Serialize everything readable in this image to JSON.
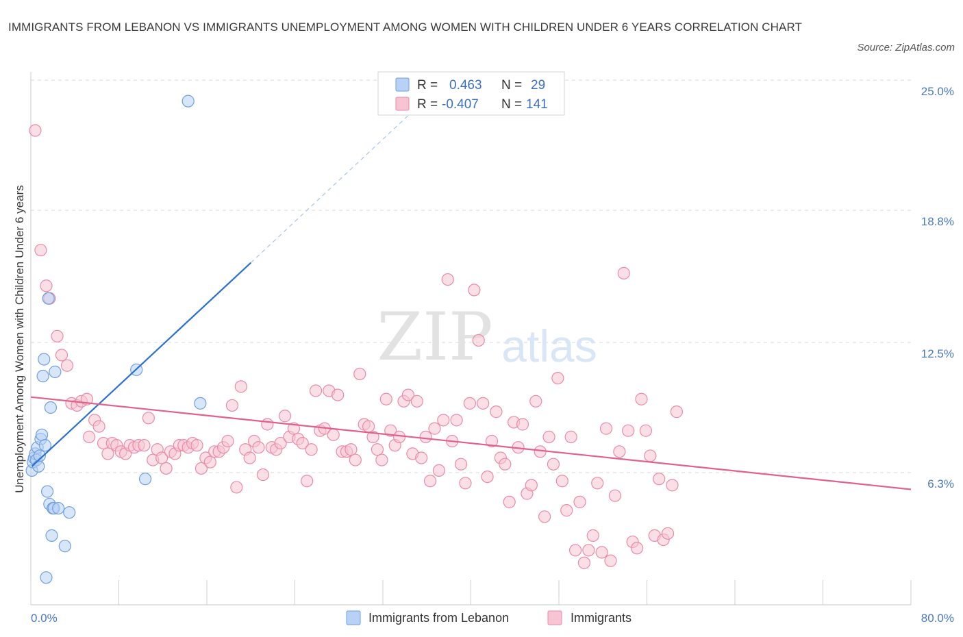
{
  "title": "IMMIGRANTS FROM LEBANON VS IMMIGRANTS UNEMPLOYMENT AMONG WOMEN WITH CHILDREN UNDER 6 YEARS CORRELATION CHART",
  "source": "Source: ZipAtlas.com",
  "watermark": {
    "zip": "ZIP",
    "atlas": "atlas"
  },
  "colors": {
    "blue_fill": "#b8d2f5",
    "blue_stroke": "#6f9fde",
    "blue_line": "#2b6fd4",
    "pink_fill": "#f7c4d3",
    "pink_stroke": "#e98aa8",
    "pink_line": "#e0608e",
    "grid": "#d8d8d8",
    "tick_text": "#4a78c2"
  },
  "legend": {
    "rows": [
      {
        "r_label": "R =",
        "r_value": "0.463",
        "n_label": "N =",
        "n_value": "29",
        "swatch": "blue"
      },
      {
        "r_label": "R =",
        "r_value": "-0.407",
        "n_label": "N =",
        "n_value": "141",
        "swatch": "pink"
      }
    ]
  },
  "chart_data": {
    "type": "scatter",
    "xlabel": "",
    "ylabel": "Unemployment Among Women with Children Under 6 years",
    "xlim": [
      0,
      80
    ],
    "ylim": [
      0,
      25
    ],
    "x_tick_labels": [
      "0.0%",
      "80.0%"
    ],
    "y_ticks": [
      6.3,
      12.5,
      18.8,
      25.0
    ],
    "y_tick_labels": [
      "6.3%",
      "12.5%",
      "18.8%",
      "25.0%"
    ],
    "grid": true,
    "legend_position": "top-center",
    "series": [
      {
        "name": "Immigrants from Lebanon",
        "color": "blue",
        "points": [
          [
            0.1,
            6.4
          ],
          [
            0.2,
            6.8
          ],
          [
            0.3,
            7.0
          ],
          [
            0.4,
            7.2
          ],
          [
            0.5,
            6.9
          ],
          [
            0.6,
            7.5
          ],
          [
            0.7,
            6.6
          ],
          [
            0.8,
            7.1
          ],
          [
            0.9,
            7.9
          ],
          [
            1.0,
            8.1
          ],
          [
            1.1,
            10.9
          ],
          [
            1.2,
            11.7
          ],
          [
            1.3,
            7.6
          ],
          [
            1.4,
            1.3
          ],
          [
            1.5,
            5.4
          ],
          [
            1.6,
            14.6
          ],
          [
            1.7,
            4.8
          ],
          [
            1.8,
            9.4
          ],
          [
            1.9,
            3.3
          ],
          [
            2.0,
            4.6
          ],
          [
            2.1,
            4.6
          ],
          [
            2.2,
            11.1
          ],
          [
            2.5,
            4.6
          ],
          [
            3.1,
            2.8
          ],
          [
            3.5,
            4.4
          ],
          [
            9.6,
            11.2
          ],
          [
            10.4,
            6.0
          ],
          [
            14.3,
            24.0
          ],
          [
            15.4,
            9.6
          ]
        ],
        "trend": {
          "x": [
            0.1,
            20.0
          ],
          "y": [
            6.6,
            16.3
          ],
          "dashed_extension_to": [
            35.5,
            23.9
          ]
        }
      },
      {
        "name": "Immigrants",
        "color": "pink",
        "points": [
          [
            0.4,
            22.6
          ],
          [
            0.9,
            16.9
          ],
          [
            1.4,
            15.2
          ],
          [
            1.7,
            14.6
          ],
          [
            2.4,
            12.8
          ],
          [
            2.8,
            11.9
          ],
          [
            3.3,
            11.4
          ],
          [
            3.7,
            9.6
          ],
          [
            4.2,
            9.5
          ],
          [
            4.6,
            9.7
          ],
          [
            5.1,
            9.8
          ],
          [
            5.3,
            8.0
          ],
          [
            5.8,
            8.8
          ],
          [
            6.2,
            8.5
          ],
          [
            6.6,
            7.7
          ],
          [
            7.0,
            7.2
          ],
          [
            7.4,
            7.7
          ],
          [
            7.8,
            7.6
          ],
          [
            8.2,
            7.3
          ],
          [
            8.6,
            7.2
          ],
          [
            9.0,
            7.6
          ],
          [
            9.4,
            7.5
          ],
          [
            9.8,
            7.6
          ],
          [
            10.3,
            7.6
          ],
          [
            10.7,
            8.9
          ],
          [
            11.1,
            6.9
          ],
          [
            11.5,
            7.4
          ],
          [
            11.9,
            7.0
          ],
          [
            12.3,
            6.5
          ],
          [
            12.7,
            7.3
          ],
          [
            13.1,
            7.2
          ],
          [
            13.5,
            7.6
          ],
          [
            13.9,
            7.6
          ],
          [
            14.3,
            7.5
          ],
          [
            14.7,
            7.7
          ],
          [
            15.1,
            7.6
          ],
          [
            15.5,
            6.5
          ],
          [
            15.9,
            7.0
          ],
          [
            16.3,
            6.8
          ],
          [
            16.7,
            7.3
          ],
          [
            17.1,
            7.3
          ],
          [
            17.5,
            7.5
          ],
          [
            17.9,
            7.8
          ],
          [
            18.3,
            9.5
          ],
          [
            18.7,
            5.6
          ],
          [
            19.1,
            10.4
          ],
          [
            19.5,
            7.4
          ],
          [
            19.9,
            7.0
          ],
          [
            20.3,
            7.8
          ],
          [
            20.7,
            7.5
          ],
          [
            21.1,
            6.2
          ],
          [
            21.5,
            8.6
          ],
          [
            21.9,
            7.5
          ],
          [
            22.3,
            7.4
          ],
          [
            22.7,
            7.7
          ],
          [
            23.1,
            9.0
          ],
          [
            23.5,
            8.0
          ],
          [
            23.9,
            8.4
          ],
          [
            24.3,
            7.9
          ],
          [
            24.7,
            7.7
          ],
          [
            25.1,
            5.9
          ],
          [
            25.5,
            7.4
          ],
          [
            25.9,
            10.2
          ],
          [
            26.3,
            8.3
          ],
          [
            26.7,
            8.4
          ],
          [
            27.1,
            10.2
          ],
          [
            27.5,
            8.1
          ],
          [
            27.9,
            10.0
          ],
          [
            28.3,
            7.3
          ],
          [
            28.7,
            7.3
          ],
          [
            29.1,
            7.4
          ],
          [
            29.5,
            6.9
          ],
          [
            29.9,
            11.0
          ],
          [
            30.3,
            8.6
          ],
          [
            30.7,
            8.5
          ],
          [
            31.1,
            8.0
          ],
          [
            31.5,
            7.4
          ],
          [
            31.9,
            6.9
          ],
          [
            32.3,
            9.8
          ],
          [
            32.7,
            8.3
          ],
          [
            33.1,
            7.6
          ],
          [
            33.5,
            8.0
          ],
          [
            33.9,
            9.7
          ],
          [
            34.3,
            10.0
          ],
          [
            34.7,
            7.2
          ],
          [
            35.1,
            9.7
          ],
          [
            35.5,
            7.0
          ],
          [
            35.9,
            8.0
          ],
          [
            36.3,
            5.9
          ],
          [
            36.7,
            8.4
          ],
          [
            37.1,
            6.4
          ],
          [
            37.5,
            8.8
          ],
          [
            37.9,
            15.5
          ],
          [
            38.3,
            7.8
          ],
          [
            38.7,
            8.8
          ],
          [
            39.1,
            6.7
          ],
          [
            39.5,
            5.8
          ],
          [
            39.9,
            9.6
          ],
          [
            40.3,
            15.0
          ],
          [
            40.7,
            12.6
          ],
          [
            41.1,
            9.6
          ],
          [
            41.5,
            6.1
          ],
          [
            41.9,
            7.8
          ],
          [
            42.3,
            9.2
          ],
          [
            42.7,
            7.0
          ],
          [
            43.1,
            6.7
          ],
          [
            43.5,
            4.9
          ],
          [
            43.9,
            8.7
          ],
          [
            44.3,
            7.5
          ],
          [
            44.7,
            8.6
          ],
          [
            45.1,
            5.3
          ],
          [
            45.5,
            5.7
          ],
          [
            45.9,
            9.7
          ],
          [
            46.3,
            7.3
          ],
          [
            46.7,
            4.2
          ],
          [
            47.1,
            8.0
          ],
          [
            47.5,
            6.7
          ],
          [
            47.9,
            10.8
          ],
          [
            48.3,
            5.9
          ],
          [
            48.7,
            4.5
          ],
          [
            49.1,
            8.0
          ],
          [
            49.5,
            2.6
          ],
          [
            49.9,
            4.9
          ],
          [
            50.3,
            2.0
          ],
          [
            50.7,
            2.6
          ],
          [
            51.1,
            3.3
          ],
          [
            51.5,
            5.8
          ],
          [
            51.9,
            2.5
          ],
          [
            52.3,
            8.4
          ],
          [
            52.7,
            2.1
          ],
          [
            53.1,
            5.2
          ],
          [
            53.5,
            7.3
          ],
          [
            53.9,
            15.8
          ],
          [
            54.3,
            8.3
          ],
          [
            54.7,
            3.0
          ],
          [
            55.1,
            2.7
          ],
          [
            55.5,
            9.8
          ],
          [
            55.9,
            8.3
          ],
          [
            56.3,
            7.1
          ],
          [
            56.7,
            3.3
          ],
          [
            57.1,
            6.0
          ],
          [
            57.5,
            3.1
          ],
          [
            57.9,
            3.4
          ],
          [
            58.3,
            5.7
          ],
          [
            58.7,
            9.2
          ]
        ],
        "trend": {
          "x": [
            0.0,
            80.0
          ],
          "y": [
            9.9,
            5.5
          ]
        }
      }
    ]
  },
  "bottom_legend": [
    {
      "label": "Immigrants from Lebanon",
      "swatch": "blue"
    },
    {
      "label": "Immigrants",
      "swatch": "pink"
    }
  ]
}
